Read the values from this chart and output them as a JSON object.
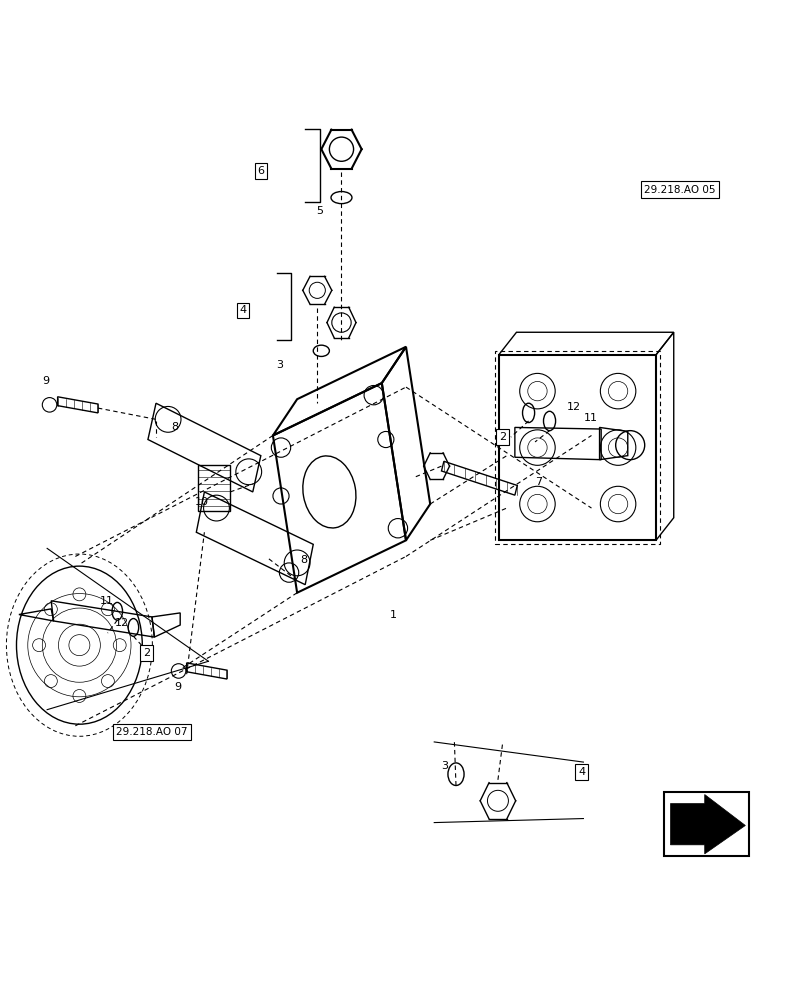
{
  "bg_color": "#ffffff",
  "line_color": "#000000",
  "label_color": "#000000",
  "fig_width": 8.12,
  "fig_height": 10.0,
  "dpi": 100,
  "ref_label_05": "29.218.AO 05",
  "ref_label_07": "29.218.AO 07"
}
